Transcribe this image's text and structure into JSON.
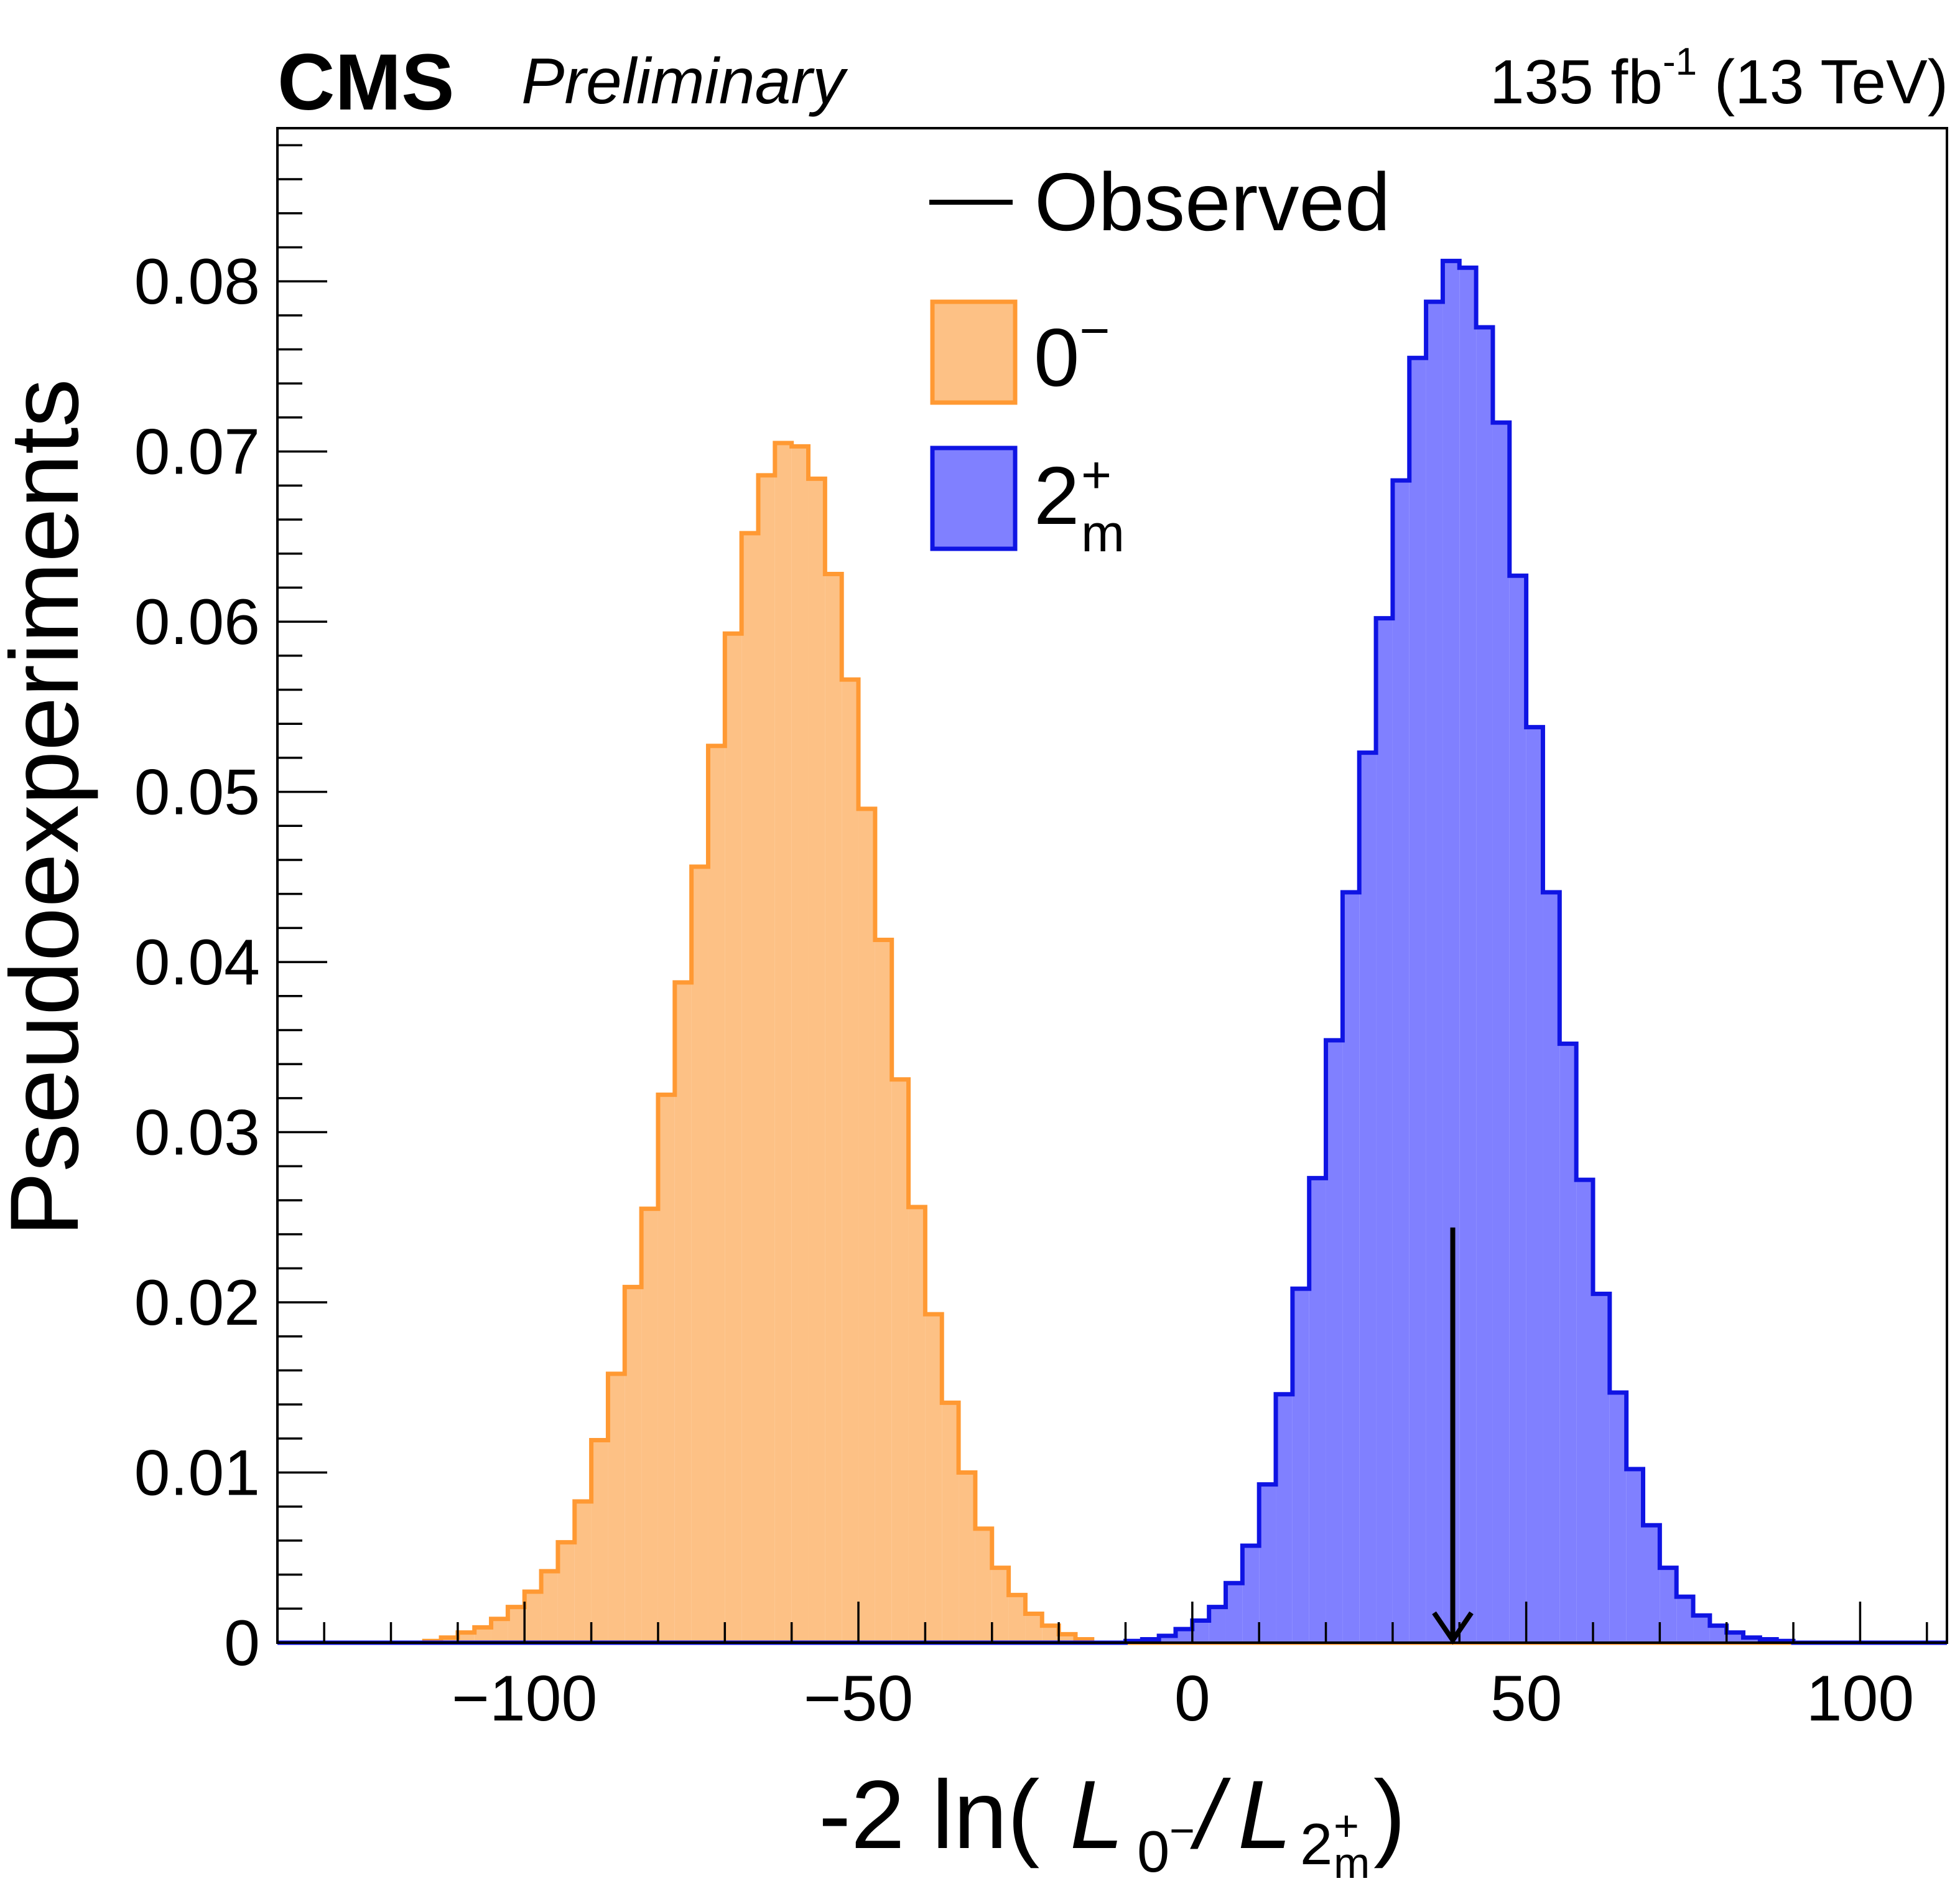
{
  "header": {
    "experiment": "CMS",
    "status": "Preliminary",
    "lumi_value": "135 fb",
    "lumi_exp": "-1",
    "energy": " (13 TeV)"
  },
  "legend": {
    "observed": "Observed",
    "h0_base": "0",
    "h0_sup": "−",
    "h1_base": "2",
    "h1_sup": "+",
    "h1_sub": "m"
  },
  "xlabel": {
    "prefix": "-2 ln(",
    "L": "L",
    "sub0": "0",
    "sub0_sup": "−",
    "slash": "/",
    "sub2": "2",
    "sub2_sup": "+",
    "sub2_sub": "m",
    "suffix": ")"
  },
  "colors": {
    "h0_fill": "#fdc185",
    "h0_line": "#ff9933",
    "h1_fill": "#8080ff",
    "h1_line": "#0f14e3",
    "observed": "#000000"
  },
  "chart_data": {
    "type": "histogram",
    "title": "",
    "xlabel": "-2 ln(L_0−/L_2+m)",
    "ylabel": "Pseudoexperiments",
    "xlim": [
      -137,
      113
    ],
    "ylim": [
      0,
      0.089
    ],
    "x_ticks": [
      -100,
      -50,
      0,
      50,
      100
    ],
    "x_tick_labels": [
      "−100",
      "−50",
      "0",
      "50",
      "100"
    ],
    "y_ticks": [
      0,
      0.01,
      0.02,
      0.03,
      0.04,
      0.05,
      0.06,
      0.07,
      0.08
    ],
    "y_tick_labels": [
      "0",
      "0.01",
      "0.02",
      "0.03",
      "0.04",
      "0.05",
      "0.06",
      "0.07",
      "0.08"
    ],
    "bin_width": 2.5,
    "series": [
      {
        "name": "0−",
        "bins_start": -115,
        "values": [
          0.0001,
          0.0003,
          0.0006,
          0.0009,
          0.0014,
          0.0021,
          0.003,
          0.0042,
          0.0059,
          0.0083,
          0.0119,
          0.0158,
          0.0209,
          0.0255,
          0.0322,
          0.0388,
          0.0456,
          0.0527,
          0.0593,
          0.0652,
          0.0686,
          0.0705,
          0.0703,
          0.0684,
          0.0628,
          0.0566,
          0.049,
          0.0413,
          0.0331,
          0.0256,
          0.0193,
          0.0141,
          0.01,
          0.0067,
          0.0044,
          0.0028,
          0.0017,
          0.001,
          0.0005,
          0.0002
        ]
      },
      {
        "name": "2+m",
        "bins_start": -10,
        "values": [
          0.0001,
          0.0002,
          0.0004,
          0.0008,
          0.0013,
          0.0021,
          0.0035,
          0.0057,
          0.0093,
          0.0146,
          0.0208,
          0.0273,
          0.0354,
          0.0441,
          0.0523,
          0.0602,
          0.0683,
          0.0755,
          0.0788,
          0.0812,
          0.0808,
          0.0773,
          0.0717,
          0.0627,
          0.0538,
          0.0441,
          0.0352,
          0.0272,
          0.0205,
          0.0147,
          0.0102,
          0.0069,
          0.0044,
          0.0027,
          0.0016,
          0.001,
          0.0006,
          0.0003,
          0.0002,
          0.0001
        ]
      }
    ],
    "observed": {
      "x": 39.0,
      "arrow_top_y": 0.0244
    }
  }
}
